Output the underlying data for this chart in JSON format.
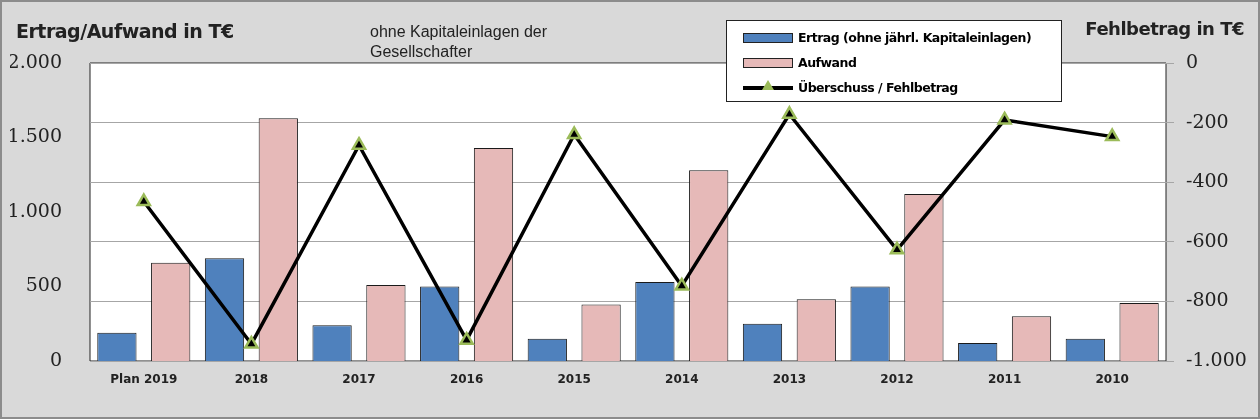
{
  "chart_data": {
    "type": "bar",
    "title": "ohne Kapitaleinlagen  der Gesellschafter",
    "ylabel": "Ertrag/Aufwand in T€",
    "y2label": "Fehlbetrag in T€",
    "categories": [
      "Plan 2019",
      "2018",
      "2017",
      "2016",
      "2015",
      "2014",
      "2013",
      "2012",
      "2011",
      "2010"
    ],
    "series": [
      {
        "name": "Ertrag (ohne jährl. Kapitaleinlagen)",
        "color": "#4f81bd",
        "values": [
          190,
          690,
          240,
          500,
          150,
          530,
          250,
          500,
          120,
          150
        ]
      },
      {
        "name": "Aufwand",
        "color": "#e6b9b8",
        "values": [
          660,
          1630,
          510,
          1430,
          380,
          1280,
          415,
          1120,
          300,
          390
        ]
      },
      {
        "name": "Überschuss / Fehlbetrag",
        "type": "line",
        "axis": "y2",
        "color": "#000000",
        "marker": "triangle",
        "values": [
          -465,
          -943,
          -276,
          -930,
          -240,
          -748,
          -172,
          -627,
          -191,
          -247
        ]
      }
    ],
    "ylim": [
      0,
      2000
    ],
    "yticks": [
      {
        "value": 0,
        "label": "0"
      },
      {
        "value": 500,
        "label": "500"
      },
      {
        "value": 1000,
        "label": "1.000"
      },
      {
        "value": 1500,
        "label": "1.500"
      },
      {
        "value": 2000,
        "label": "2.000"
      }
    ],
    "y2lim": [
      -1000,
      0
    ],
    "y2ticks": [
      {
        "value": -1000,
        "label": "-1.000"
      },
      {
        "value": -800,
        "label": "-800"
      },
      {
        "value": -600,
        "label": "-600"
      },
      {
        "value": -400,
        "label": "-400"
      },
      {
        "value": -200,
        "label": "-200"
      },
      {
        "value": 0,
        "label": "0"
      }
    ],
    "grid": "y",
    "legend": "top right"
  }
}
